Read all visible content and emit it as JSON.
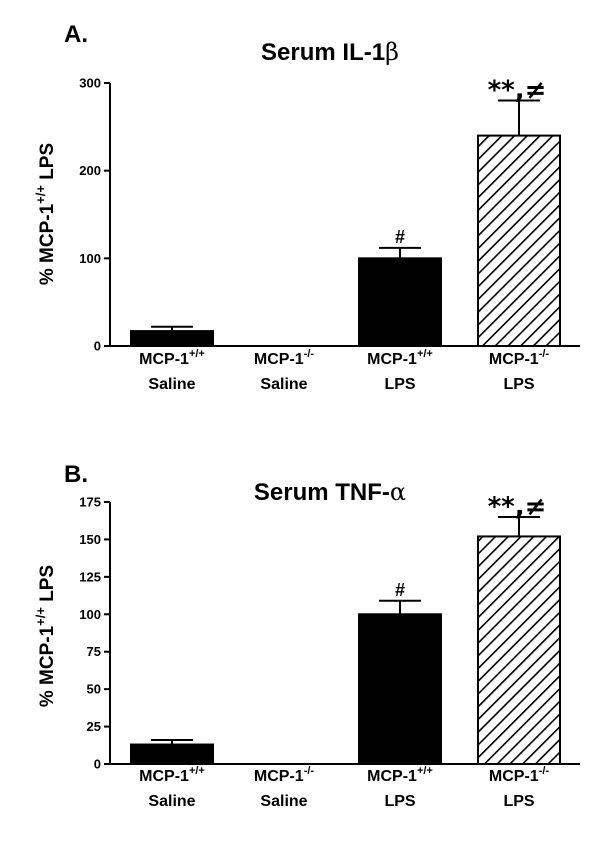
{
  "chart_data": [
    {
      "type": "bar",
      "panel": "A.",
      "title_text": "Serum IL-1",
      "title_symbol": "β",
      "ylabel_prefix": "% MCP-1",
      "ylabel_sup": "+/+",
      "ylabel_suffix": " LPS",
      "ylim": [
        0,
        300
      ],
      "yticks": [
        "0",
        "100",
        "200",
        "300"
      ],
      "grid": false,
      "categories": [
        {
          "name": "MCP-1",
          "sup": "+/+",
          "line2": "Saline"
        },
        {
          "name": "MCP-1",
          "sup": "-/-",
          "line2": "Saline"
        },
        {
          "name": "MCP-1",
          "sup": "+/+",
          "line2": "LPS"
        },
        {
          "name": "MCP-1",
          "sup": "-/-",
          "line2": "LPS"
        }
      ],
      "values": [
        17,
        0,
        100,
        240
      ],
      "errors": [
        5,
        0,
        12,
        40
      ],
      "fills": [
        "solid",
        "solid",
        "solid",
        "hatched"
      ],
      "annotations": [
        "",
        "",
        "#",
        "**,≠"
      ]
    },
    {
      "type": "bar",
      "panel": "B.",
      "title_text": "Serum TNF-",
      "title_symbol": "α",
      "ylabel_prefix": "% MCP-1",
      "ylabel_sup": "+/+",
      "ylabel_suffix": " LPS",
      "ylim": [
        0,
        175
      ],
      "yticks": [
        "0",
        "25",
        "50",
        "75",
        "100",
        "125",
        "150",
        "175"
      ],
      "grid": false,
      "categories": [
        {
          "name": "MCP-1",
          "sup": "+/+",
          "line2": "Saline"
        },
        {
          "name": "MCP-1",
          "sup": "-/-",
          "line2": "Saline"
        },
        {
          "name": "MCP-1",
          "sup": "+/+",
          "line2": "LPS"
        },
        {
          "name": "MCP-1",
          "sup": "-/-",
          "line2": "LPS"
        }
      ],
      "values": [
        13,
        0,
        100,
        152
      ],
      "errors": [
        3,
        0,
        9,
        13
      ],
      "fills": [
        "solid",
        "solid",
        "solid",
        "hatched"
      ],
      "annotations": [
        "",
        "",
        "#",
        "**,≠"
      ]
    }
  ]
}
